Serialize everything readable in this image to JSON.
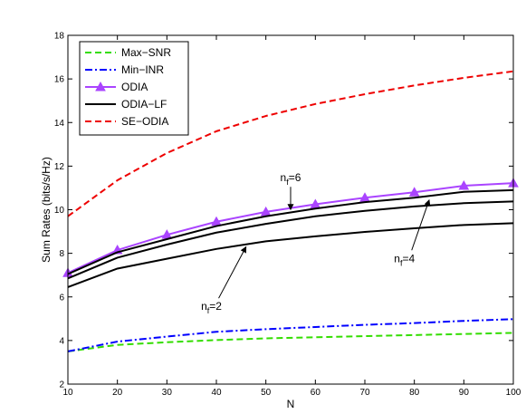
{
  "chart_data": {
    "type": "line",
    "xlabel": "N",
    "ylabel": "Sum Rates (bits/s/Hz)",
    "xlim": [
      10,
      100
    ],
    "ylim": [
      2,
      18
    ],
    "x": [
      10,
      20,
      30,
      40,
      50,
      60,
      70,
      80,
      90,
      100
    ],
    "xticks": [
      10,
      20,
      30,
      40,
      50,
      60,
      70,
      80,
      90,
      100
    ],
    "yticks": [
      2,
      4,
      6,
      8,
      10,
      12,
      14,
      16,
      18
    ],
    "grid": false,
    "legend_position": "top-left",
    "series": [
      {
        "name": "Max−SNR",
        "color": "#33dd00",
        "style": "dashed",
        "marker": "none",
        "values": [
          3.5,
          3.8,
          3.92,
          4.02,
          4.1,
          4.15,
          4.2,
          4.25,
          4.3,
          4.35
        ]
      },
      {
        "name": "Min−INR",
        "color": "#0000ff",
        "style": "dashdot",
        "marker": "none",
        "values": [
          3.5,
          3.95,
          4.18,
          4.4,
          4.52,
          4.62,
          4.72,
          4.8,
          4.9,
          4.98
        ]
      },
      {
        "name": "ODIA",
        "color": "#aa44ff",
        "style": "solid",
        "marker": "triangle",
        "values": [
          7.1,
          8.15,
          8.85,
          9.45,
          9.9,
          10.25,
          10.55,
          10.8,
          11.1,
          11.22
        ]
      },
      {
        "name": "ODIA−LF",
        "color": "#000000",
        "style": "solid",
        "marker": "none",
        "values": [
          7.05,
          8.05,
          8.65,
          9.25,
          9.7,
          10.05,
          10.35,
          10.55,
          10.82,
          10.9
        ]
      },
      {
        "name": "",
        "color": "#000000",
        "style": "solid",
        "marker": "none",
        "legend": false,
        "values": [
          6.85,
          7.8,
          8.4,
          8.95,
          9.35,
          9.7,
          9.95,
          10.15,
          10.3,
          10.38
        ]
      },
      {
        "name": "",
        "color": "#000000",
        "style": "solid",
        "marker": "none",
        "legend": false,
        "values": [
          6.45,
          7.3,
          7.75,
          8.2,
          8.55,
          8.78,
          8.98,
          9.15,
          9.3,
          9.38
        ]
      },
      {
        "name": "SE−ODIA",
        "color": "#ee0000",
        "style": "dashed",
        "marker": "none",
        "values": [
          9.7,
          11.35,
          12.6,
          13.6,
          14.3,
          14.85,
          15.3,
          15.7,
          16.05,
          16.35
        ]
      }
    ],
    "annotations": [
      {
        "label_main": "n",
        "label_sub": "f",
        "label_rest": "=6",
        "label_x": 55,
        "label_y": 11.3,
        "arrow_to_x": 55,
        "arrow_to_y": 10.0
      },
      {
        "label_main": "n",
        "label_sub": "f",
        "label_rest": "=4",
        "label_x": 78,
        "label_y": 7.6,
        "arrow_to_x": 83,
        "arrow_to_y": 10.45
      },
      {
        "label_main": "n",
        "label_sub": "f",
        "label_rest": "=2",
        "label_x": 39,
        "label_y": 5.4,
        "arrow_to_x": 46,
        "arrow_to_y": 8.3
      }
    ]
  }
}
